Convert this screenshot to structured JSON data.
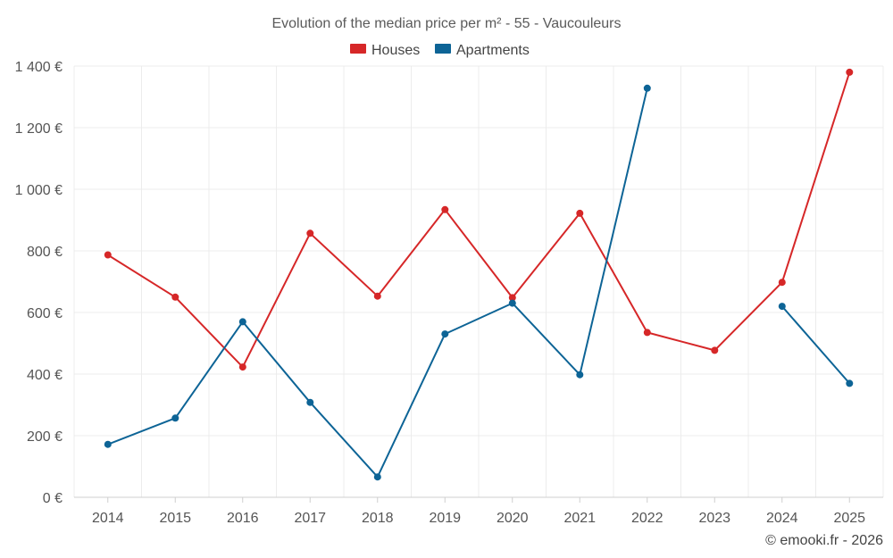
{
  "chart_data": {
    "type": "line",
    "title": "Evolution of the median price per m² - 55 - Vaucouleurs",
    "xlabel": "",
    "ylabel": "",
    "categories": [
      "2014",
      "2015",
      "2016",
      "2017",
      "2018",
      "2019",
      "2020",
      "2021",
      "2022",
      "2023",
      "2024",
      "2025"
    ],
    "ylim": [
      0,
      1400
    ],
    "yticks": [
      0,
      200,
      400,
      600,
      800,
      1000,
      1200,
      1400
    ],
    "ytick_labels": [
      "0 €",
      "200 €",
      "400 €",
      "600 €",
      "800 €",
      "1 000 €",
      "1 200 €",
      "1 400 €"
    ],
    "legend_position": "top-center",
    "grid": true,
    "series": [
      {
        "name": "Houses",
        "color": "#d62728",
        "values": [
          787,
          650,
          423,
          857,
          653,
          934,
          648,
          922,
          535,
          477,
          698,
          1380
        ]
      },
      {
        "name": "Apartments",
        "color": "#0d6496",
        "values": [
          172,
          257,
          570,
          308,
          66,
          530,
          630,
          398,
          1328,
          null,
          620,
          370
        ]
      }
    ]
  },
  "credit": "© emooki.fr - 2026"
}
